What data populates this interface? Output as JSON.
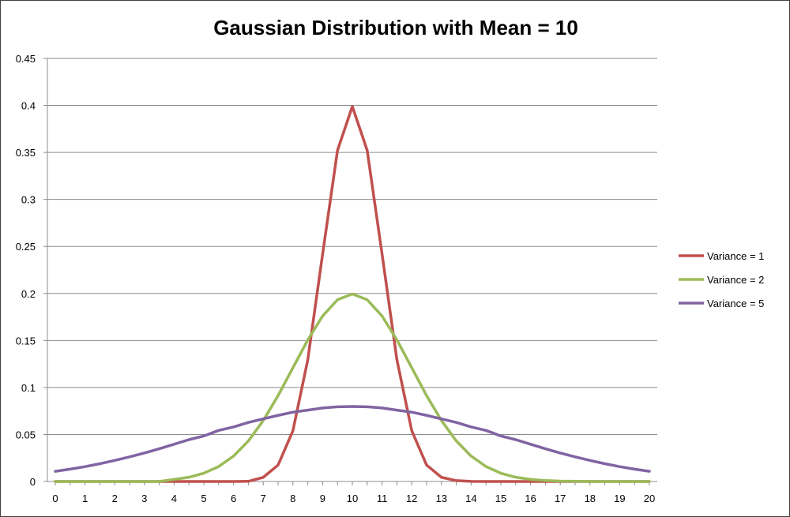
{
  "chart_data": {
    "type": "line",
    "title": "Gaussian Distribution with Mean = 10",
    "xlabel": "",
    "ylabel": "",
    "x": [
      0,
      0.5,
      1,
      1.5,
      2,
      2.5,
      3,
      3.5,
      4,
      4.5,
      5,
      5.5,
      6,
      6.5,
      7,
      7.5,
      8,
      8.5,
      9,
      9.5,
      10,
      10.5,
      11,
      11.5,
      12,
      12.5,
      13,
      13.5,
      14,
      14.5,
      15,
      15.5,
      16,
      16.5,
      17,
      17.5,
      18,
      18.5,
      19,
      19.5,
      20
    ],
    "xticks": [
      "0",
      "1",
      "2",
      "3",
      "4",
      "5",
      "6",
      "7",
      "8",
      "9",
      "10",
      "11",
      "12",
      "13",
      "14",
      "15",
      "16",
      "17",
      "18",
      "19",
      "20"
    ],
    "yticks": [
      "0",
      "0.05",
      "0.1",
      "0.15",
      "0.2",
      "0.25",
      "0.3",
      "0.35",
      "0.4",
      "0.45"
    ],
    "ylim": [
      0,
      0.45
    ],
    "xlim": [
      0,
      20
    ],
    "grid": "horizontal",
    "legend_position": "right",
    "series": [
      {
        "name": "Variance = 1",
        "color": "#c0504d",
        "values": [
          0,
          0,
          0,
          0,
          0,
          0,
          0,
          0,
          0,
          0,
          0,
          0,
          0,
          0.0002,
          0.0044,
          0.0175,
          0.054,
          0.1295,
          0.242,
          0.3521,
          0.3989,
          0.3521,
          0.242,
          0.1295,
          0.054,
          0.0175,
          0.0044,
          0.0009,
          0.0001,
          0,
          0,
          0,
          0,
          0,
          0,
          0,
          0,
          0,
          0,
          0,
          0
        ]
      },
      {
        "name": "Variance = 2",
        "color": "#9bbb59",
        "values": [
          0,
          0,
          0,
          0,
          0,
          0,
          0,
          0,
          0.0022,
          0.0045,
          0.0088,
          0.0159,
          0.027,
          0.0431,
          0.0648,
          0.0913,
          0.121,
          0.1506,
          0.176,
          0.1933,
          0.1995,
          0.1933,
          0.176,
          0.1506,
          0.121,
          0.0913,
          0.0648,
          0.0431,
          0.027,
          0.0159,
          0.0088,
          0.0045,
          0.0022,
          0.001,
          0.0004,
          0.0002,
          0,
          0,
          0,
          0,
          0
        ]
      },
      {
        "name": "Variance = 5",
        "color": "#8064a2",
        "values": [
          0.0108,
          0.0131,
          0.0158,
          0.0189,
          0.0224,
          0.0262,
          0.0303,
          0.0348,
          0.0396,
          0.0445,
          0.0484,
          0.0543,
          0.058,
          0.0628,
          0.0666,
          0.0703,
          0.0737,
          0.0759,
          0.0782,
          0.0794,
          0.0798,
          0.0794,
          0.0782,
          0.0759,
          0.0737,
          0.0703,
          0.0666,
          0.0628,
          0.058,
          0.0543,
          0.0484,
          0.0445,
          0.0396,
          0.0348,
          0.0303,
          0.0262,
          0.0224,
          0.0189,
          0.0158,
          0.0131,
          0.0108
        ]
      }
    ]
  }
}
